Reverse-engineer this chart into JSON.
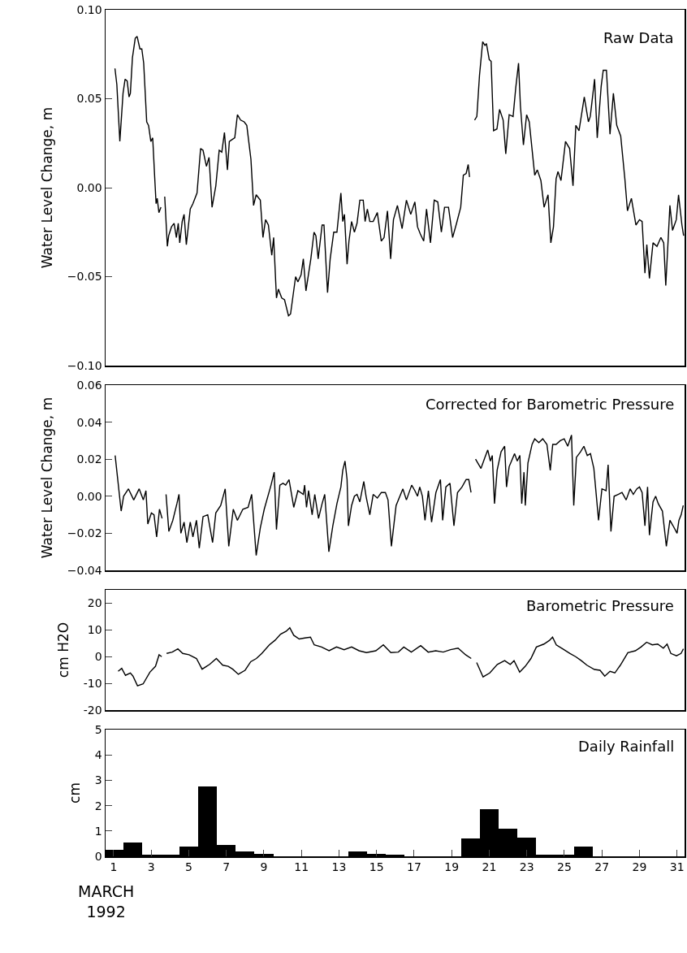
{
  "chart_data": [
    {
      "type": "line",
      "title": "Raw Data",
      "ylabel": "Water Level Change, m",
      "color": "#000000",
      "tick_labels": "y",
      "xlim": [
        0.57,
        31.4
      ],
      "ylim": [
        -0.1,
        0.1
      ],
      "yticks": [
        {
          "value": 0.1,
          "label": "0.10"
        },
        {
          "value": 0.05,
          "label": "0.05"
        },
        {
          "value": 0,
          "label": "0.00"
        },
        {
          "value": -0.05,
          "label": "−0.05"
        },
        {
          "value": -0.1,
          "label": "−0.10"
        }
      ],
      "x": [
        1.07,
        1.17,
        1.33,
        1.5,
        1.61,
        1.72,
        1.82,
        1.89,
        2.0,
        2.15,
        2.25,
        2.4,
        2.5,
        2.6,
        2.76,
        2.86,
        2.98,
        3.08,
        3.18,
        3.26,
        3.32,
        3.41,
        3.52,
        3.62,
        3.72,
        3.86,
        3.93,
        4.08,
        4.22,
        4.34,
        4.44,
        4.52,
        4.65,
        4.75,
        4.87,
        5.08,
        5.22,
        5.44,
        5.63,
        5.76,
        5.94,
        6.08,
        6.24,
        6.44,
        6.62,
        6.76,
        6.9,
        7.06,
        7.16,
        7.3,
        7.45,
        7.59,
        7.76,
        7.95,
        8.09,
        8.31,
        8.45,
        8.59,
        8.81,
        8.95,
        9.09,
        9.24,
        9.42,
        9.52,
        9.67,
        9.77,
        9.95,
        10.1,
        10.31,
        10.42,
        10.69,
        10.81,
        10.98,
        11.1,
        11.24,
        11.5,
        11.67,
        11.77,
        11.89,
        12.1,
        12.2,
        12.39,
        12.53,
        12.72,
        12.89,
        13.1,
        13.2,
        13.29,
        13.43,
        13.53,
        13.67,
        13.82,
        13.96,
        14.11,
        14.29,
        14.39,
        14.51,
        14.64,
        14.82,
        15.04,
        15.25,
        15.4,
        15.58,
        15.75,
        15.9,
        16.11,
        16.36,
        16.59,
        16.82,
        17.04,
        17.18,
        17.33,
        17.51,
        17.66,
        17.87,
        18.07,
        18.26,
        18.45,
        18.62,
        18.83,
        19.05,
        19.26,
        19.48,
        19.62,
        19.77,
        19.88,
        19.95,
        20.08,
        20.22,
        20.34,
        20.48,
        20.65,
        20.77,
        20.85,
        21.0,
        21.1,
        21.23,
        21.41,
        21.55,
        21.74,
        21.88,
        22.06,
        22.27,
        22.41,
        22.56,
        22.66,
        22.82,
        22.99,
        23.13,
        23.42,
        23.56,
        23.75,
        23.92,
        24.13,
        24.28,
        24.42,
        24.56,
        24.66,
        24.82,
        25.06,
        25.28,
        25.46,
        25.61,
        25.78,
        26.06,
        26.28,
        26.38,
        26.61,
        26.75,
        26.96,
        27.07,
        27.24,
        27.43,
        27.61,
        27.79,
        28.0,
        28.22,
        28.36,
        28.57,
        28.81,
        29.0,
        29.14,
        29.29,
        29.39,
        29.53,
        29.72,
        29.93,
        30.14,
        30.29,
        30.4,
        30.62,
        30.76,
        30.96,
        31.08,
        31.26,
        31.35
      ],
      "values": [
        0.067,
        0.058,
        0.026,
        0.053,
        0.061,
        0.06,
        0.051,
        0.053,
        0.073,
        0.084,
        0.085,
        0.078,
        0.078,
        0.07,
        0.037,
        0.035,
        0.026,
        0.028,
        0.007,
        -0.009,
        -0.006,
        -0.014,
        -0.011,
        null,
        -0.005,
        -0.033,
        -0.027,
        -0.022,
        -0.02,
        -0.028,
        -0.02,
        -0.031,
        -0.019,
        -0.015,
        -0.032,
        -0.012,
        -0.009,
        -0.003,
        0.022,
        0.021,
        0.012,
        0.017,
        -0.011,
        0.001,
        0.021,
        0.02,
        0.031,
        0.01,
        0.026,
        0.027,
        0.028,
        0.041,
        0.038,
        0.037,
        0.035,
        0.016,
        -0.01,
        -0.004,
        -0.007,
        -0.028,
        -0.018,
        -0.021,
        -0.038,
        -0.028,
        -0.062,
        -0.057,
        -0.062,
        -0.063,
        -0.072,
        -0.071,
        -0.05,
        -0.053,
        -0.049,
        -0.04,
        -0.058,
        -0.04,
        -0.025,
        -0.027,
        -0.04,
        -0.021,
        -0.021,
        -0.059,
        -0.04,
        -0.025,
        -0.025,
        -0.003,
        -0.019,
        -0.015,
        -0.043,
        -0.03,
        -0.019,
        -0.025,
        -0.02,
        -0.007,
        -0.007,
        -0.019,
        -0.012,
        -0.019,
        -0.019,
        -0.014,
        -0.03,
        -0.028,
        -0.013,
        -0.04,
        -0.018,
        -0.01,
        -0.023,
        -0.007,
        -0.015,
        -0.008,
        -0.022,
        -0.026,
        -0.03,
        -0.012,
        -0.031,
        -0.007,
        -0.008,
        -0.025,
        -0.011,
        -0.011,
        -0.028,
        -0.02,
        -0.011,
        0.007,
        0.008,
        0.013,
        0.006,
        null,
        0.038,
        0.04,
        0.063,
        0.082,
        0.08,
        0.081,
        0.072,
        0.071,
        0.032,
        0.033,
        0.044,
        0.038,
        0.019,
        0.041,
        0.04,
        0.056,
        0.07,
        0.046,
        0.024,
        0.041,
        0.037,
        0.007,
        0.01,
        0.004,
        -0.011,
        -0.004,
        -0.031,
        -0.022,
        0.005,
        0.009,
        0.004,
        0.026,
        0.022,
        0.001,
        0.035,
        0.032,
        0.051,
        0.037,
        0.04,
        0.061,
        0.028,
        0.057,
        0.066,
        0.066,
        0.03,
        0.053,
        0.035,
        0.029,
        0.005,
        -0.013,
        -0.006,
        -0.021,
        -0.018,
        -0.019,
        -0.048,
        -0.032,
        -0.051,
        -0.031,
        -0.033,
        -0.028,
        -0.031,
        -0.055,
        -0.01,
        -0.024,
        -0.018,
        -0.004,
        -0.021,
        -0.027
      ]
    },
    {
      "type": "line",
      "title": "Corrected for Barometric Pressure",
      "ylabel": "Water Level Change, m",
      "color": "#000000",
      "tick_labels": "y",
      "xlim": [
        0.57,
        31.4
      ],
      "ylim": [
        -0.04,
        0.06
      ],
      "yticks": [
        {
          "value": 0.06,
          "label": "0.06"
        },
        {
          "value": 0.04,
          "label": "0.04"
        },
        {
          "value": 0.02,
          "label": "0.02"
        },
        {
          "value": 0,
          "label": "0.00"
        },
        {
          "value": -0.02,
          "label": "−0.02"
        },
        {
          "value": -0.04,
          "label": "−0.04"
        }
      ],
      "x": [
        1.08,
        1.4,
        1.53,
        1.79,
        2.07,
        2.36,
        2.58,
        2.72,
        2.82,
        3.01,
        3.15,
        3.29,
        3.44,
        3.58,
        3.68,
        3.79,
        3.94,
        4.15,
        4.37,
        4.48,
        4.58,
        4.75,
        4.9,
        5.08,
        5.22,
        5.41,
        5.56,
        5.76,
        6.01,
        6.27,
        6.44,
        6.7,
        6.94,
        7.13,
        7.37,
        7.59,
        7.88,
        8.16,
        8.35,
        8.59,
        8.81,
        9.02,
        9.38,
        9.55,
        9.67,
        9.85,
        10.02,
        10.16,
        10.34,
        10.59,
        10.81,
        11.1,
        11.17,
        11.27,
        11.38,
        11.57,
        11.71,
        11.91,
        12.1,
        12.24,
        12.46,
        12.67,
        12.89,
        13.1,
        13.2,
        13.32,
        13.43,
        13.5,
        13.67,
        13.82,
        13.96,
        14.11,
        14.32,
        14.44,
        14.64,
        14.82,
        15.04,
        15.25,
        15.47,
        15.61,
        15.79,
        16.04,
        16.4,
        16.59,
        16.87,
        17.04,
        17.18,
        17.3,
        17.44,
        17.58,
        17.76,
        17.93,
        18.16,
        18.4,
        18.52,
        18.69,
        18.91,
        19.12,
        19.31,
        19.55,
        19.77,
        19.91,
        20.03,
        20.15,
        20.27,
        20.56,
        20.77,
        20.92,
        21.06,
        21.16,
        21.28,
        21.42,
        21.63,
        21.82,
        21.92,
        22.06,
        22.35,
        22.49,
        22.63,
        22.73,
        22.85,
        22.92,
        23.06,
        23.28,
        23.42,
        23.64,
        23.85,
        24.07,
        24.25,
        24.38,
        24.56,
        24.78,
        24.99,
        25.18,
        25.38,
        25.5,
        25.64,
        25.86,
        26.04,
        26.22,
        26.39,
        26.57,
        26.82,
        27.0,
        27.22,
        27.33,
        27.48,
        27.65,
        27.86,
        28.07,
        28.29,
        28.5,
        28.67,
        28.86,
        29.0,
        29.14,
        29.29,
        29.43,
        29.53,
        29.72,
        29.86,
        30.0,
        30.22,
        30.43,
        30.62,
        30.79,
        31.0,
        31.1,
        31.22,
        31.33
      ],
      "values": [
        0.022,
        -0.008,
        0.0,
        0.004,
        -0.002,
        0.004,
        -0.002,
        0.003,
        -0.015,
        -0.009,
        -0.01,
        -0.022,
        -0.007,
        -0.012,
        null,
        0.001,
        -0.019,
        -0.013,
        -0.004,
        0.001,
        -0.02,
        -0.014,
        -0.025,
        -0.014,
        -0.022,
        -0.013,
        -0.028,
        -0.011,
        -0.01,
        -0.025,
        -0.009,
        -0.005,
        0.004,
        -0.027,
        -0.007,
        -0.013,
        -0.007,
        -0.006,
        0.001,
        -0.032,
        -0.017,
        -0.007,
        0.006,
        0.013,
        -0.018,
        0.006,
        0.007,
        0.006,
        0.009,
        -0.006,
        0.003,
        0.001,
        0.006,
        -0.006,
        0.003,
        -0.01,
        0.001,
        -0.012,
        -0.004,
        0.001,
        -0.03,
        -0.016,
        -0.004,
        0.005,
        0.014,
        0.019,
        0.009,
        -0.016,
        -0.005,
        0.0,
        0.001,
        -0.003,
        0.008,
        0.0,
        -0.01,
        0.001,
        -0.001,
        0.002,
        0.002,
        -0.002,
        -0.027,
        -0.005,
        0.004,
        -0.002,
        0.006,
        0.003,
        0.0,
        0.005,
        0.0,
        -0.013,
        0.003,
        -0.014,
        0.002,
        0.009,
        -0.013,
        0.005,
        0.007,
        -0.016,
        0.002,
        0.005,
        0.009,
        0.009,
        0.002,
        null,
        0.02,
        0.015,
        0.021,
        0.025,
        0.019,
        0.022,
        -0.004,
        0.014,
        0.024,
        0.027,
        0.005,
        0.016,
        0.023,
        0.019,
        0.022,
        -0.004,
        0.013,
        -0.005,
        0.018,
        0.028,
        0.031,
        0.029,
        0.031,
        0.028,
        0.014,
        0.028,
        0.028,
        0.03,
        0.031,
        0.027,
        0.033,
        -0.005,
        0.021,
        0.024,
        0.027,
        0.022,
        0.023,
        0.015,
        -0.013,
        0.004,
        0.003,
        0.017,
        -0.019,
        0.0,
        0.001,
        0.002,
        -0.002,
        0.004,
        0.001,
        0.004,
        0.005,
        0.002,
        -0.016,
        0.005,
        -0.021,
        -0.003,
        0.0,
        -0.004,
        -0.008,
        -0.027,
        -0.013,
        -0.016,
        -0.02,
        -0.013,
        -0.01,
        -0.005
      ]
    },
    {
      "type": "line",
      "title": "Barometric Pressure",
      "ylabel": "cm H2O",
      "color": "#000000",
      "tick_labels": "y",
      "xlim": [
        0.57,
        31.4
      ],
      "ylim": [
        -20,
        25
      ],
      "yticks": [
        20,
        10,
        0,
        -10,
        -20
      ],
      "x": [
        1.24,
        1.43,
        1.63,
        1.89,
        2.03,
        2.27,
        2.57,
        2.93,
        3.23,
        3.42,
        3.56,
        3.69,
        3.82,
        4.12,
        4.42,
        4.68,
        5.01,
        5.41,
        5.71,
        6.11,
        6.47,
        6.81,
        7.1,
        7.34,
        7.64,
        8.0,
        8.3,
        8.6,
        8.89,
        9.29,
        9.59,
        9.89,
        10.19,
        10.38,
        10.59,
        10.88,
        11.18,
        11.48,
        11.68,
        12.07,
        12.47,
        12.87,
        13.27,
        13.67,
        14.07,
        14.46,
        14.96,
        15.36,
        15.76,
        16.16,
        16.45,
        16.85,
        17.35,
        17.75,
        18.15,
        18.55,
        18.94,
        19.34,
        19.74,
        20.04,
        20.18,
        20.33,
        20.67,
        21.03,
        21.43,
        21.82,
        22.12,
        22.32,
        22.62,
        22.92,
        23.22,
        23.51,
        23.91,
        24.21,
        24.37,
        24.57,
        24.91,
        25.3,
        25.6,
        25.9,
        26.2,
        26.6,
        26.9,
        27.15,
        27.43,
        27.69,
        27.98,
        28.38,
        28.78,
        29.08,
        29.38,
        29.68,
        29.97,
        30.27,
        30.47,
        30.67,
        30.97,
        31.21,
        31.34
      ],
      "values": [
        -5.5,
        -4.4,
        -7.0,
        -6.1,
        -7.3,
        -10.9,
        -10.2,
        -5.8,
        -3.6,
        0.7,
        0.0,
        null,
        1.2,
        1.7,
        2.9,
        1.2,
        0.7,
        -0.7,
        -4.7,
        -2.9,
        -0.7,
        -3.2,
        -3.6,
        -4.7,
        -6.6,
        -5.1,
        -1.9,
        -0.7,
        1.2,
        4.4,
        6.1,
        8.4,
        9.5,
        10.8,
        8.0,
        6.6,
        7.0,
        7.3,
        4.4,
        3.6,
        2.2,
        3.6,
        2.6,
        3.6,
        2.2,
        1.5,
        2.2,
        4.4,
        1.5,
        1.7,
        3.6,
        1.7,
        4.1,
        1.7,
        2.2,
        1.7,
        2.6,
        3.2,
        0.7,
        -0.7,
        null,
        -2.2,
        -7.6,
        -6.1,
        -2.9,
        -1.5,
        -2.9,
        -1.5,
        -5.8,
        -3.6,
        -0.7,
        3.6,
        4.7,
        6.1,
        7.3,
        4.4,
        2.9,
        1.2,
        0.0,
        -1.5,
        -3.2,
        -4.8,
        -5.1,
        -7.3,
        -5.5,
        -6.1,
        -3.2,
        1.5,
        2.2,
        3.6,
        5.4,
        4.4,
        4.7,
        3.2,
        4.7,
        1.2,
        0.3,
        1.2,
        2.9
      ]
    },
    {
      "type": "bar",
      "title": "Daily Rainfall",
      "ylabel": "cm",
      "xlabel": "MARCH\n1992",
      "color": "#000000",
      "xlim": [
        0.57,
        31.4
      ],
      "ylim": [
        0,
        5
      ],
      "yticks": [
        0,
        1,
        2,
        3,
        4,
        5
      ],
      "xticks": [
        1,
        3,
        5,
        7,
        9,
        11,
        13,
        15,
        17,
        19,
        21,
        23,
        25,
        27,
        29,
        31
      ],
      "x": [
        1,
        2,
        3,
        4,
        5,
        6,
        7,
        8,
        9,
        10,
        11,
        12,
        13,
        14,
        15,
        16,
        17,
        18,
        19,
        20,
        21,
        22,
        23,
        24,
        25,
        26,
        27,
        28,
        29,
        30,
        31
      ],
      "values": [
        0.25,
        0.55,
        0.05,
        0.05,
        0.4,
        2.75,
        0.45,
        0.2,
        0.1,
        0,
        0,
        0,
        0,
        0.2,
        0.1,
        0.05,
        0,
        0,
        0,
        0.7,
        1.85,
        1.1,
        0.75,
        0.05,
        0.05,
        0.4,
        0,
        0,
        0,
        0,
        0
      ]
    }
  ]
}
